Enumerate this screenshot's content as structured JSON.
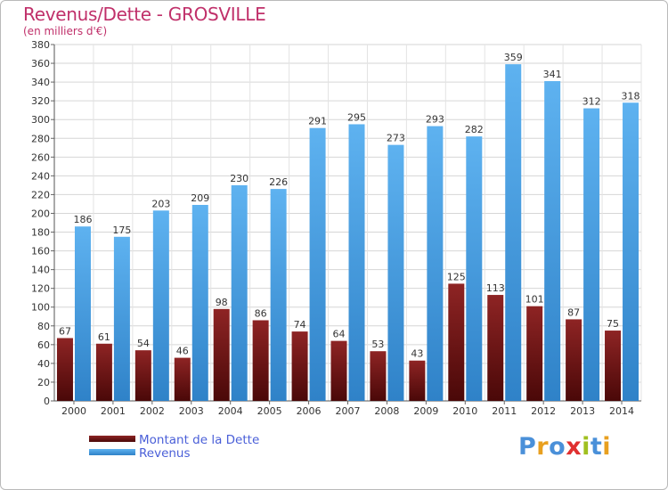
{
  "title": "Revenus/Dette - GROSVILLE",
  "subtitle": "(en milliers d'€)",
  "legend": {
    "dette": "Montant de la Dette",
    "revenus": "Revenus"
  },
  "logo": {
    "text": "Proxiti",
    "letters": [
      "P",
      "r",
      "o",
      "x",
      "i",
      "t",
      "i"
    ],
    "colors": [
      "#4a90d9",
      "#e8a020",
      "#4a90d9",
      "#e03030",
      "#a0c020",
      "#4a90d9",
      "#e8a020"
    ]
  },
  "colors": {
    "dette": "#7a1a1a",
    "revenus": "#4a9ee0",
    "title": "#c0306a",
    "legend_text": "#4a5fd8"
  },
  "chart_data": {
    "type": "bar",
    "categories": [
      "2000",
      "2001",
      "2002",
      "2003",
      "2004",
      "2005",
      "2006",
      "2007",
      "2008",
      "2009",
      "2010",
      "2011",
      "2012",
      "2013",
      "2014"
    ],
    "series": [
      {
        "name": "Montant de la Dette",
        "values": [
          67,
          61,
          54,
          46,
          98,
          86,
          74,
          64,
          53,
          43,
          125,
          113,
          101,
          87,
          75
        ]
      },
      {
        "name": "Revenus",
        "values": [
          186,
          175,
          203,
          209,
          230,
          226,
          291,
          295,
          273,
          293,
          282,
          359,
          341,
          312,
          318
        ]
      }
    ],
    "title": "Revenus/Dette - GROSVILLE",
    "ylabel": "(en milliers d'€)",
    "xlabel": "",
    "ylim": [
      0,
      380
    ],
    "yticks": [
      0,
      20,
      40,
      60,
      80,
      100,
      120,
      140,
      160,
      180,
      200,
      220,
      240,
      260,
      280,
      300,
      320,
      340,
      360,
      380
    ],
    "grid": true,
    "legend_position": "bottom-left"
  }
}
